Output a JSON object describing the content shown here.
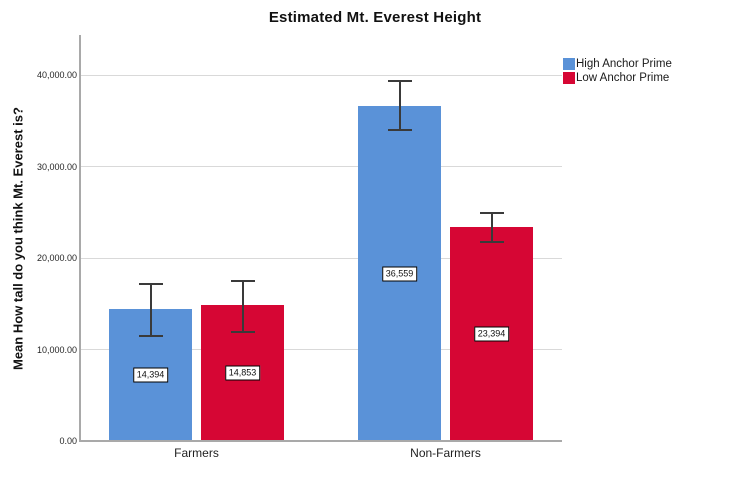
{
  "chart_data": {
    "type": "bar",
    "title": "Estimated Mt. Everest Height",
    "ylabel": "Mean How tall do you think Mt. Everest is?",
    "xlabel": "",
    "categories": [
      "Farmers",
      "Non-Farmers"
    ],
    "series": [
      {
        "name": "High Anchor Prime",
        "color": "#5A92D8",
        "values": [
          14394,
          36559
        ],
        "value_labels": [
          "14,394",
          "36,559"
        ],
        "error_low": [
          11450,
          34000
        ],
        "error_high": [
          17200,
          39350
        ]
      },
      {
        "name": "Low Anchor Prime",
        "color": "#D60634",
        "values": [
          14853,
          23394
        ],
        "value_labels": [
          "14,853",
          "23,394"
        ],
        "error_low": [
          11950,
          21750
        ],
        "error_high": [
          17450,
          24900
        ]
      }
    ],
    "ylim": [
      0,
      44500
    ],
    "yticks": [
      0,
      10000,
      20000,
      30000,
      40000
    ],
    "ytick_labels": [
      "0.00",
      "10,000.00",
      "20,000.00",
      "30,000.00",
      "40,000.00"
    ],
    "grid": true,
    "legend_position": "top-right",
    "error_bars": "shown"
  }
}
